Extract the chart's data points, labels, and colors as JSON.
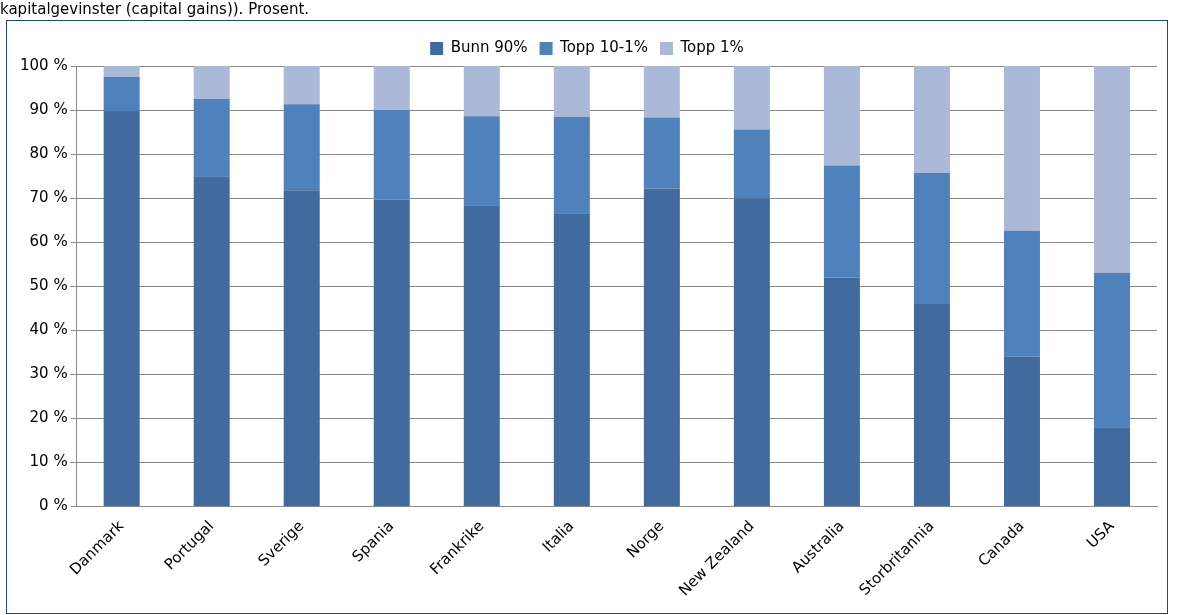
{
  "chart_data": {
    "type": "bar",
    "stacked": true,
    "title": "kapitalgevinster (capital gains)). Prosent.",
    "categories": [
      "Danmark",
      "Portugal",
      "Sverige",
      "Spania",
      "Frankrike",
      "Italia",
      "Norge",
      "New Zealand",
      "Australia",
      "Storbritannia",
      "Canada",
      "USA"
    ],
    "series": [
      {
        "name": "Bunn 90%",
        "color": "#416a9e",
        "values": [
          89.8,
          75,
          71.8,
          69.7,
          68.4,
          66.6,
          72.2,
          70,
          52,
          46,
          34,
          18
        ]
      },
      {
        "name": "Topp 10-1%",
        "color": "#4f81bd",
        "values": [
          7.7,
          17.5,
          19.5,
          20.3,
          20.2,
          21.9,
          16.1,
          15.6,
          25.4,
          29.7,
          28.6,
          35.1
        ]
      },
      {
        "name": "Topp 1%",
        "color": "#aab9d8",
        "values": [
          2.5,
          7.5,
          8.7,
          10,
          11.4,
          11.5,
          11.7,
          14.4,
          22.6,
          24.3,
          37.4,
          46.9
        ]
      }
    ],
    "ylim": [
      0,
      100
    ],
    "yticks": [
      {
        "value": 0,
        "label": "0 %"
      },
      {
        "value": 10,
        "label": "10 %"
      },
      {
        "value": 20,
        "label": "20 %"
      },
      {
        "value": 30,
        "label": "30 %"
      },
      {
        "value": 40,
        "label": "40 %"
      },
      {
        "value": 50,
        "label": "50 %"
      },
      {
        "value": 60,
        "label": "60 %"
      },
      {
        "value": 70,
        "label": "70 %"
      },
      {
        "value": 80,
        "label": "80 %"
      },
      {
        "value": 90,
        "label": "90 %"
      },
      {
        "value": 100,
        "label": "100 %"
      }
    ],
    "grid": "y",
    "legend": "top"
  }
}
